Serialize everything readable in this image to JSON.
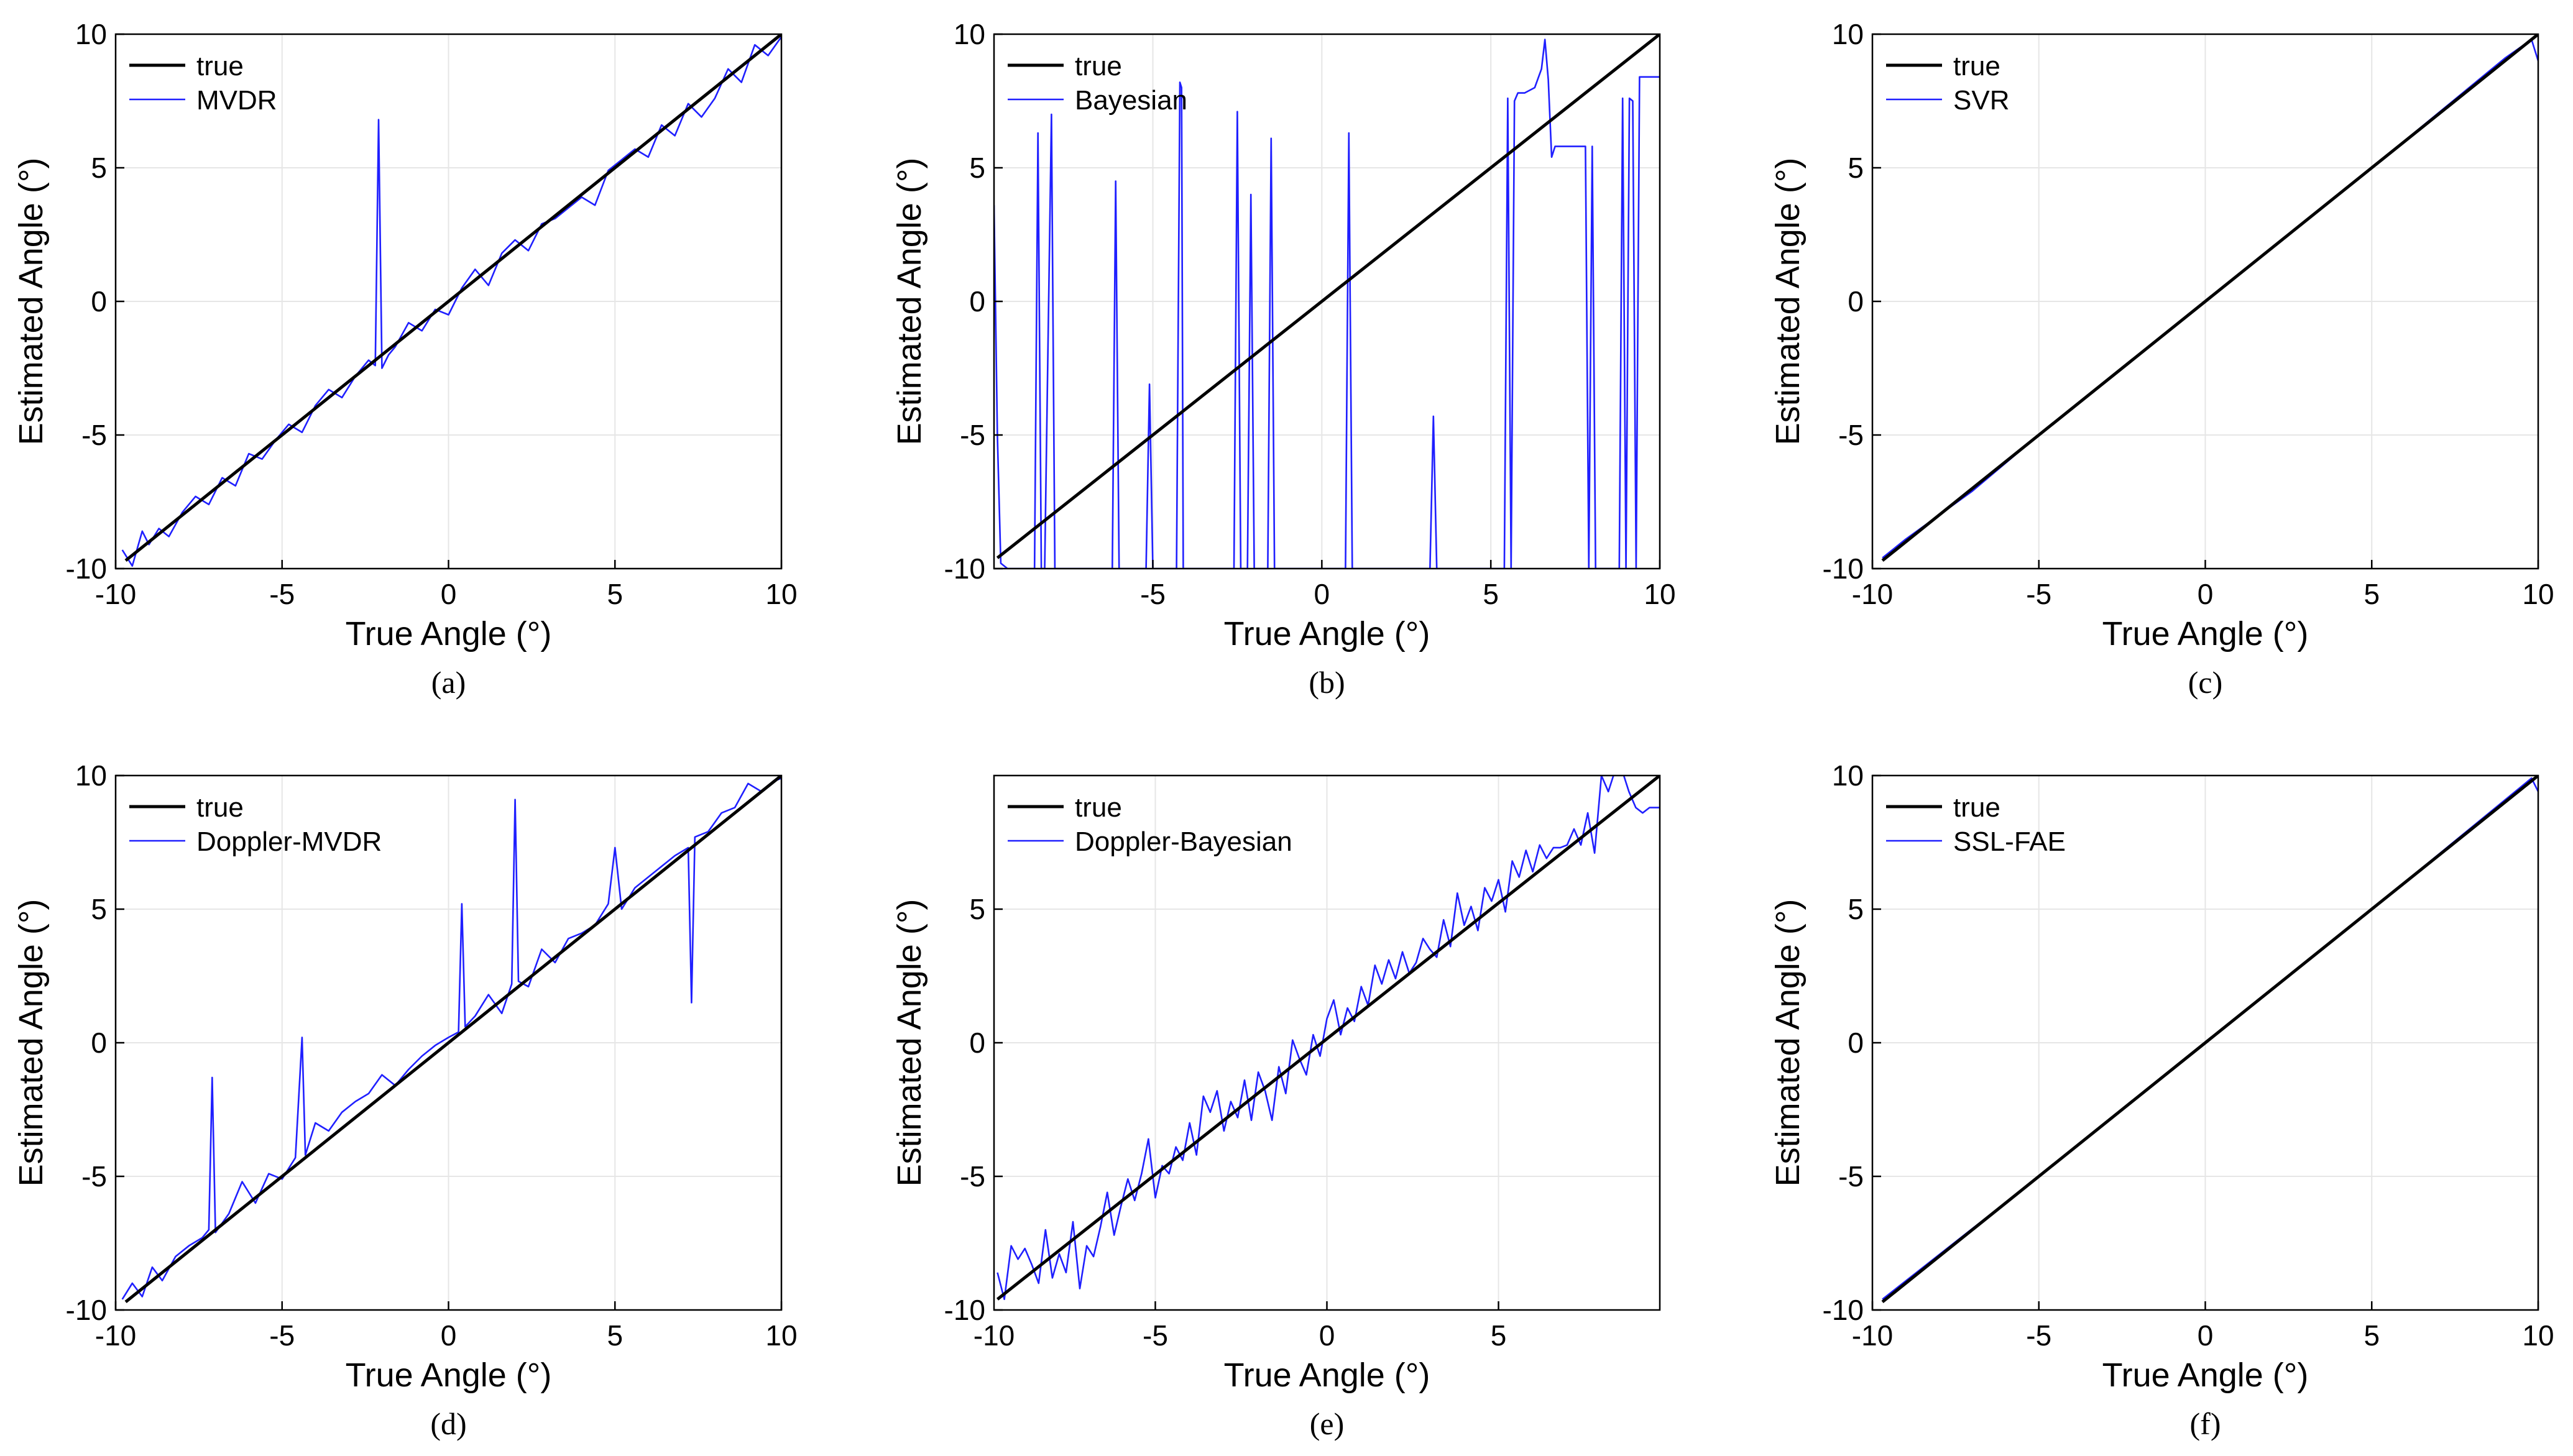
{
  "figure": {
    "colors": {
      "true": "#000000",
      "estimate": "#1f1fff",
      "grid": "#e6e6e6",
      "axis": "#000000"
    },
    "legend_placement": "top-left",
    "grid": true
  },
  "chart_data": [
    {
      "type": "line",
      "caption": "(a)",
      "xlabel": "True Angle (°)",
      "ylabel": "Estimated Angle (°)",
      "xlim": [
        -10,
        10
      ],
      "ylim": [
        -10,
        10
      ],
      "xticks": [
        "-10",
        "-5",
        "0",
        "5",
        "10"
      ],
      "yticks": [
        "-10",
        "-5",
        "0",
        "5",
        "10"
      ],
      "legend": [
        "true",
        "MVDR"
      ],
      "series": [
        {
          "name": "true",
          "x": [
            -9.7,
            10
          ],
          "y": [
            -9.7,
            10
          ]
        },
        {
          "name": "MVDR",
          "x": [
            -9.8,
            -9.5,
            -9.2,
            -9.0,
            -8.7,
            -8.4,
            -8.0,
            -7.6,
            -7.2,
            -6.8,
            -6.4,
            -6.0,
            -5.6,
            -5.2,
            -4.8,
            -4.4,
            -4.0,
            -3.6,
            -3.2,
            -2.8,
            -2.4,
            -2.2,
            -2.1,
            -2.0,
            -1.8,
            -1.6,
            -1.2,
            -0.8,
            -0.4,
            0.0,
            0.4,
            0.8,
            1.2,
            1.6,
            2.0,
            2.4,
            2.8,
            3.2,
            3.6,
            4.0,
            4.4,
            4.8,
            5.2,
            5.6,
            6.0,
            6.4,
            6.8,
            7.2,
            7.6,
            8.0,
            8.4,
            8.8,
            9.2,
            9.6,
            10.0
          ],
          "y": [
            -9.3,
            -9.9,
            -8.6,
            -9.1,
            -8.5,
            -8.8,
            -7.9,
            -7.3,
            -7.6,
            -6.6,
            -6.9,
            -5.7,
            -5.9,
            -5.2,
            -4.6,
            -4.9,
            -3.9,
            -3.3,
            -3.6,
            -2.8,
            -2.2,
            -2.4,
            6.8,
            -2.5,
            -2.0,
            -1.7,
            -0.8,
            -1.1,
            -0.3,
            -0.5,
            0.5,
            1.2,
            0.6,
            1.8,
            2.3,
            1.9,
            2.9,
            3.1,
            3.5,
            3.9,
            3.6,
            4.9,
            5.3,
            5.7,
            5.4,
            6.6,
            6.2,
            7.4,
            6.9,
            7.6,
            8.7,
            8.2,
            9.6,
            9.2,
            9.9
          ]
        }
      ]
    },
    {
      "type": "line",
      "caption": "(b)",
      "xlabel": "True Angle (°)",
      "ylabel": "Estimated Angle (°)",
      "xlim": [
        -9.7,
        10
      ],
      "ylim": [
        -10,
        10
      ],
      "xticks": [
        "-5",
        "0",
        "5",
        "10"
      ],
      "yticks": [
        "-10",
        "-5",
        "0",
        "5",
        "10"
      ],
      "legend": [
        "true",
        "Bayesian"
      ],
      "series": [
        {
          "name": "true",
          "x": [
            -9.6,
            10
          ],
          "y": [
            -9.6,
            10
          ]
        },
        {
          "name": "Bayesian",
          "x": [
            -9.7,
            -9.6,
            -9.5,
            -9.3,
            -8.5,
            -8.4,
            -8.3,
            -8.2,
            -8.0,
            -7.9,
            -7.8,
            -6.2,
            -6.1,
            -6.0,
            -5.2,
            -5.1,
            -5.0,
            -4.9,
            -4.3,
            -4.2,
            -4.15,
            -4.1,
            -4.0,
            -2.6,
            -2.5,
            -2.4,
            -2.2,
            -2.1,
            -2.0,
            -1.6,
            -1.5,
            -1.4,
            0.7,
            0.8,
            0.9,
            3.2,
            3.3,
            3.4,
            5.4,
            5.5,
            5.6,
            5.7,
            5.8,
            6.0,
            6.3,
            6.5,
            6.6,
            6.7,
            6.8,
            6.9,
            7.1,
            7.8,
            7.9,
            8.0,
            8.1,
            8.2,
            8.3,
            8.8,
            8.9,
            9.0,
            9.1,
            9.2,
            9.3,
            9.4,
            9.5,
            10.0
          ],
          "y": [
            3.6,
            -5.0,
            -9.8,
            -10,
            -10,
            6.3,
            -10,
            -10,
            7.0,
            -10,
            -10,
            -10,
            4.5,
            -10,
            -10,
            -3.1,
            -10,
            -10,
            -10,
            8.2,
            8.0,
            -10,
            -10,
            -10,
            7.1,
            -10,
            -10,
            4.0,
            -10,
            -10,
            6.1,
            -10,
            -10,
            6.3,
            -10,
            -10,
            -4.3,
            -10,
            -10,
            7.6,
            -10,
            7.5,
            7.8,
            7.8,
            8.0,
            8.7,
            9.8,
            8.3,
            5.4,
            5.8,
            5.8,
            5.8,
            -10,
            5.8,
            -10,
            -10,
            -10,
            -10,
            7.6,
            -10,
            7.6,
            7.5,
            -10,
            8.4,
            8.4,
            8.4
          ]
        }
      ]
    },
    {
      "type": "line",
      "caption": "(c)",
      "xlabel": "True Angle (°)",
      "ylabel": "Estimated Angle (°)",
      "xlim": [
        -10,
        10
      ],
      "ylim": [
        -10,
        10
      ],
      "xticks": [
        "-10",
        "-5",
        "0",
        "5",
        "10"
      ],
      "yticks": [
        "-10",
        "-5",
        "0",
        "5",
        "10"
      ],
      "legend": [
        "true",
        "SVR"
      ],
      "series": [
        {
          "name": "true",
          "x": [
            -9.7,
            10
          ],
          "y": [
            -9.7,
            10
          ]
        },
        {
          "name": "SVR",
          "x": [
            -9.7,
            -9.0,
            -7.0,
            -5.0,
            0.0,
            5.0,
            9.0,
            9.8,
            10.0
          ],
          "y": [
            -9.6,
            -8.9,
            -7.1,
            -5.0,
            0.0,
            5.0,
            9.1,
            9.8,
            9.0
          ]
        }
      ]
    },
    {
      "type": "line",
      "caption": "(d)",
      "xlabel": "True Angle (°)",
      "ylabel": "Estimated Angle (°)",
      "xlim": [
        -10,
        10
      ],
      "ylim": [
        -10,
        10
      ],
      "xticks": [
        "-10",
        "-5",
        "0",
        "5",
        "10"
      ],
      "yticks": [
        "-10",
        "-5",
        "0",
        "5",
        "10"
      ],
      "legend": [
        "true",
        "Doppler-MVDR"
      ],
      "series": [
        {
          "name": "true",
          "x": [
            -9.7,
            10
          ],
          "y": [
            -9.7,
            10
          ]
        },
        {
          "name": "Doppler-MVDR",
          "x": [
            -9.8,
            -9.5,
            -9.2,
            -8.9,
            -8.6,
            -8.2,
            -7.8,
            -7.4,
            -7.2,
            -7.1,
            -7.0,
            -6.6,
            -6.2,
            -5.8,
            -5.4,
            -5.0,
            -4.6,
            -4.4,
            -4.3,
            -4.0,
            -3.6,
            -3.2,
            -2.8,
            -2.4,
            -2.0,
            -1.6,
            -1.2,
            -0.8,
            -0.4,
            0.0,
            0.3,
            0.4,
            0.5,
            0.8,
            1.2,
            1.6,
            1.9,
            2.0,
            2.1,
            2.4,
            2.8,
            3.2,
            3.6,
            4.0,
            4.4,
            4.8,
            5.0,
            5.2,
            5.6,
            6.0,
            6.4,
            6.8,
            7.2,
            7.3,
            7.4,
            7.8,
            8.2,
            8.6,
            9.0,
            9.4,
            9.8,
            10.0
          ],
          "y": [
            -9.6,
            -9.0,
            -9.5,
            -8.4,
            -8.9,
            -8.0,
            -7.6,
            -7.3,
            -7.0,
            -1.3,
            -7.1,
            -6.4,
            -5.2,
            -6.0,
            -4.9,
            -5.1,
            -4.3,
            0.2,
            -4.2,
            -3.0,
            -3.3,
            -2.6,
            -2.2,
            -1.9,
            -1.2,
            -1.6,
            -1.0,
            -0.5,
            -0.1,
            0.2,
            0.4,
            5.2,
            0.6,
            1.0,
            1.8,
            1.1,
            2.2,
            9.1,
            2.3,
            2.1,
            3.5,
            3.0,
            3.9,
            4.1,
            4.4,
            5.2,
            7.3,
            5.0,
            5.8,
            6.2,
            6.6,
            7.0,
            7.3,
            1.5,
            7.7,
            7.9,
            8.6,
            8.8,
            9.7,
            9.4,
            9.8,
            9.9
          ]
        }
      ]
    },
    {
      "type": "line",
      "caption": "(e)",
      "xlabel": "True Angle (°)",
      "ylabel": "Estimated Angle (°)",
      "xlim": [
        -9.7,
        9.7
      ],
      "ylim": [
        -10,
        10
      ],
      "xticks": [
        "-10",
        "-5",
        "0",
        "5"
      ],
      "yticks": [
        "-10",
        "-5",
        "0",
        "5"
      ],
      "legend": [
        "true",
        "Doppler-Bayesian"
      ],
      "series": [
        {
          "name": "true",
          "x": [
            -9.6,
            9.7
          ],
          "y": [
            -9.6,
            10
          ]
        },
        {
          "name": "Doppler-Bayesian",
          "x": [
            -9.6,
            -9.4,
            -9.2,
            -9.0,
            -8.8,
            -8.6,
            -8.4,
            -8.2,
            -8.0,
            -7.8,
            -7.6,
            -7.4,
            -7.2,
            -7.0,
            -6.8,
            -6.6,
            -6.4,
            -6.2,
            -6.0,
            -5.8,
            -5.6,
            -5.4,
            -5.2,
            -5.0,
            -4.8,
            -4.6,
            -4.4,
            -4.2,
            -4.0,
            -3.8,
            -3.6,
            -3.4,
            -3.2,
            -3.0,
            -2.8,
            -2.6,
            -2.4,
            -2.2,
            -2.0,
            -1.8,
            -1.6,
            -1.4,
            -1.2,
            -1.0,
            -0.8,
            -0.6,
            -0.4,
            -0.2,
            0.0,
            0.2,
            0.4,
            0.6,
            0.8,
            1.0,
            1.2,
            1.4,
            1.6,
            1.8,
            2.0,
            2.2,
            2.4,
            2.6,
            2.8,
            3.0,
            3.2,
            3.4,
            3.6,
            3.8,
            4.0,
            4.2,
            4.4,
            4.6,
            4.8,
            5.0,
            5.2,
            5.4,
            5.6,
            5.8,
            6.0,
            6.2,
            6.4,
            6.6,
            6.8,
            7.0,
            7.2,
            7.4,
            7.6,
            7.8,
            8.0,
            8.2,
            8.4,
            8.6,
            8.8,
            9.0,
            9.2,
            9.4,
            9.7
          ],
          "y": [
            -8.6,
            -9.6,
            -7.6,
            -8.1,
            -7.7,
            -8.3,
            -9.0,
            -7.0,
            -8.8,
            -7.9,
            -8.6,
            -6.7,
            -9.2,
            -7.6,
            -8.0,
            -6.9,
            -5.6,
            -7.2,
            -6.1,
            -5.1,
            -5.9,
            -4.9,
            -3.6,
            -5.8,
            -4.6,
            -4.9,
            -3.9,
            -4.4,
            -3.0,
            -4.2,
            -2.0,
            -2.6,
            -1.8,
            -3.3,
            -2.2,
            -2.8,
            -1.4,
            -2.9,
            -1.1,
            -1.8,
            -2.9,
            -0.9,
            -1.9,
            0.1,
            -0.6,
            -1.2,
            0.3,
            -0.5,
            0.9,
            1.6,
            0.3,
            1.3,
            0.8,
            2.1,
            1.4,
            2.9,
            2.2,
            3.1,
            2.4,
            3.4,
            2.6,
            3.0,
            3.9,
            3.5,
            3.2,
            4.6,
            3.6,
            5.6,
            4.4,
            5.1,
            4.2,
            5.8,
            5.3,
            6.1,
            4.9,
            6.8,
            6.2,
            7.2,
            6.4,
            7.4,
            6.9,
            7.3,
            7.3,
            7.4,
            8.0,
            7.4,
            8.6,
            7.1,
            10.0,
            9.4,
            10.2,
            10.2,
            9.4,
            8.8,
            8.6,
            8.8,
            8.8
          ]
        }
      ]
    },
    {
      "type": "line",
      "caption": "(f)",
      "xlabel": "True Angle (°)",
      "ylabel": "Estimated Angle (°)",
      "xlim": [
        -10,
        10
      ],
      "ylim": [
        -10,
        10
      ],
      "xticks": [
        "-10",
        "-5",
        "0",
        "5",
        "10"
      ],
      "yticks": [
        "-10",
        "-5",
        "0",
        "5",
        "10"
      ],
      "legend": [
        "true",
        "SSL-FAE"
      ],
      "series": [
        {
          "name": "true",
          "x": [
            -9.7,
            10
          ],
          "y": [
            -9.7,
            10
          ]
        },
        {
          "name": "SSL-FAE",
          "x": [
            -9.7,
            -5.0,
            0.0,
            5.0,
            9.8,
            10.0
          ],
          "y": [
            -9.6,
            -5.0,
            0.0,
            5.0,
            9.9,
            9.4
          ]
        }
      ]
    }
  ]
}
